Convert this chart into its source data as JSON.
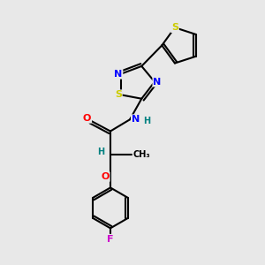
{
  "bg_color": "#e8e8e8",
  "atom_colors": {
    "C": "#000000",
    "N": "#0000ff",
    "S": "#cccc00",
    "O": "#ff0000",
    "F": "#cc00cc",
    "H": "#008080"
  },
  "bond_color": "#000000",
  "lw": 1.5
}
